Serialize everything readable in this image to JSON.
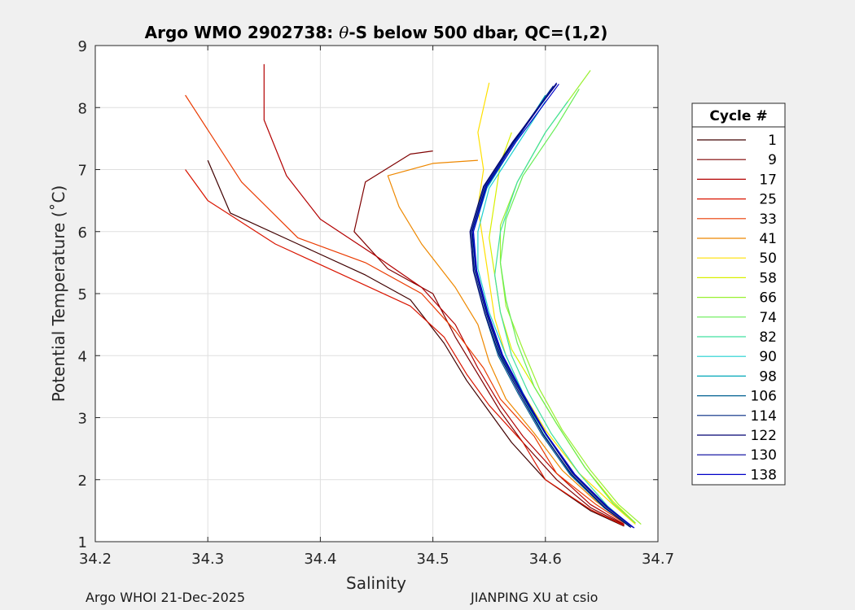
{
  "footer": {
    "left": "Argo WHOI 21-Dec-2025",
    "right": "JIANPING XU at csio"
  },
  "colors": {
    "background": "#f0f0f0",
    "axes_bg": "#ffffff",
    "grid": "#dfdfdf",
    "text": "#262626"
  },
  "chart_data": {
    "type": "line",
    "title_prefix": "Argo WMO 2902738: ",
    "title_theta": "θ",
    "title_suffix": "-S below 500 dbar,  QC=(1,2)",
    "xlabel": "Salinity",
    "ylabel": "Potential Temperature (˚C)",
    "xlim": [
      34.2,
      34.7
    ],
    "ylim": [
      1,
      9
    ],
    "xticks": [
      34.2,
      34.3,
      34.4,
      34.5,
      34.6,
      34.7
    ],
    "xtick_labels": [
      "34.2",
      "34.3",
      "34.4",
      "34.5",
      "34.6",
      "34.7"
    ],
    "yticks": [
      1,
      2,
      3,
      4,
      5,
      6,
      7,
      8,
      9
    ],
    "ytick_labels": [
      "1",
      "2",
      "3",
      "4",
      "5",
      "6",
      "7",
      "8",
      "9"
    ],
    "grid": true,
    "legend_title": "Cycle #",
    "legend_position": "outside-right",
    "series": [
      {
        "name": "1",
        "color": "#400000",
        "points": [
          [
            34.67,
            1.25
          ],
          [
            34.64,
            1.5
          ],
          [
            34.6,
            2.0
          ],
          [
            34.57,
            2.6
          ],
          [
            34.55,
            3.1
          ],
          [
            34.53,
            3.6
          ],
          [
            34.51,
            4.2
          ],
          [
            34.48,
            4.9
          ],
          [
            34.44,
            5.3
          ],
          [
            34.38,
            5.8
          ],
          [
            34.32,
            6.3
          ],
          [
            34.3,
            7.15
          ]
        ]
      },
      {
        "name": "9",
        "color": "#7f0000",
        "points": [
          [
            34.67,
            1.27
          ],
          [
            34.64,
            1.55
          ],
          [
            34.61,
            2.0
          ],
          [
            34.58,
            2.6
          ],
          [
            34.56,
            3.1
          ],
          [
            34.54,
            3.7
          ],
          [
            34.52,
            4.3
          ],
          [
            34.5,
            5.0
          ],
          [
            34.46,
            5.4
          ],
          [
            34.43,
            6.0
          ],
          [
            34.44,
            6.8
          ],
          [
            34.48,
            7.25
          ],
          [
            34.5,
            7.3
          ]
        ]
      },
      {
        "name": "17",
        "color": "#b30000",
        "points": [
          [
            34.67,
            1.28
          ],
          [
            34.64,
            1.6
          ],
          [
            34.61,
            2.1
          ],
          [
            34.58,
            2.7
          ],
          [
            34.56,
            3.2
          ],
          [
            34.54,
            3.8
          ],
          [
            34.52,
            4.5
          ],
          [
            34.49,
            5.1
          ],
          [
            34.45,
            5.6
          ],
          [
            34.4,
            6.2
          ],
          [
            34.37,
            6.9
          ],
          [
            34.35,
            7.8
          ],
          [
            34.35,
            8.7
          ]
        ]
      },
      {
        "name": "25",
        "color": "#d91500",
        "points": [
          [
            34.67,
            1.26
          ],
          [
            34.64,
            1.52
          ],
          [
            34.6,
            2.0
          ],
          [
            34.58,
            2.6
          ],
          [
            34.55,
            3.2
          ],
          [
            34.53,
            3.7
          ],
          [
            34.51,
            4.3
          ],
          [
            34.48,
            4.8
          ],
          [
            34.42,
            5.3
          ],
          [
            34.36,
            5.8
          ],
          [
            34.3,
            6.5
          ],
          [
            34.28,
            7.0
          ]
        ]
      },
      {
        "name": "33",
        "color": "#ea3a00",
        "points": [
          [
            34.67,
            1.3
          ],
          [
            34.645,
            1.6
          ],
          [
            34.61,
            2.1
          ],
          [
            34.59,
            2.7
          ],
          [
            34.56,
            3.3
          ],
          [
            34.545,
            3.8
          ],
          [
            34.52,
            4.4
          ],
          [
            34.49,
            5.0
          ],
          [
            34.44,
            5.5
          ],
          [
            34.38,
            5.9
          ],
          [
            34.33,
            6.8
          ],
          [
            34.28,
            8.2
          ]
        ]
      },
      {
        "name": "41",
        "color": "#ee8800",
        "points": [
          [
            34.67,
            1.32
          ],
          [
            34.645,
            1.65
          ],
          [
            34.615,
            2.15
          ],
          [
            34.59,
            2.75
          ],
          [
            34.565,
            3.3
          ],
          [
            34.55,
            3.9
          ],
          [
            34.54,
            4.5
          ],
          [
            34.52,
            5.1
          ],
          [
            34.49,
            5.8
          ],
          [
            34.47,
            6.4
          ],
          [
            34.46,
            6.9
          ],
          [
            34.5,
            7.1
          ],
          [
            34.54,
            7.15
          ]
        ]
      },
      {
        "name": "50",
        "color": "#ffe000",
        "points": [
          [
            34.68,
            1.28
          ],
          [
            34.66,
            1.6
          ],
          [
            34.63,
            2.1
          ],
          [
            34.6,
            2.8
          ],
          [
            34.58,
            3.4
          ],
          [
            34.565,
            4.0
          ],
          [
            34.555,
            4.6
          ],
          [
            34.55,
            5.2
          ],
          [
            34.545,
            5.8
          ],
          [
            34.54,
            6.4
          ],
          [
            34.545,
            7.0
          ],
          [
            34.54,
            7.6
          ],
          [
            34.55,
            8.4
          ]
        ]
      },
      {
        "name": "58",
        "color": "#d8f000",
        "points": [
          [
            34.68,
            1.3
          ],
          [
            34.66,
            1.65
          ],
          [
            34.635,
            2.2
          ],
          [
            34.61,
            2.9
          ],
          [
            34.59,
            3.5
          ],
          [
            34.57,
            4.1
          ],
          [
            34.56,
            4.7
          ],
          [
            34.555,
            5.3
          ],
          [
            34.55,
            5.9
          ],
          [
            34.555,
            6.5
          ],
          [
            34.56,
            7.1
          ],
          [
            34.57,
            7.6
          ]
        ]
      },
      {
        "name": "66",
        "color": "#99f030",
        "points": [
          [
            34.685,
            1.28
          ],
          [
            34.665,
            1.6
          ],
          [
            34.64,
            2.15
          ],
          [
            34.615,
            2.8
          ],
          [
            34.595,
            3.45
          ],
          [
            34.58,
            4.1
          ],
          [
            34.565,
            4.8
          ],
          [
            34.56,
            5.5
          ],
          [
            34.56,
            6.1
          ],
          [
            34.575,
            6.8
          ],
          [
            34.6,
            7.6
          ],
          [
            34.64,
            8.6
          ]
        ]
      },
      {
        "name": "74",
        "color": "#66ee55",
        "points": [
          [
            34.68,
            1.3
          ],
          [
            34.66,
            1.62
          ],
          [
            34.635,
            2.2
          ],
          [
            34.61,
            2.9
          ],
          [
            34.59,
            3.5
          ],
          [
            34.575,
            4.2
          ],
          [
            34.565,
            4.9
          ],
          [
            34.56,
            5.5
          ],
          [
            34.565,
            6.2
          ],
          [
            34.58,
            6.9
          ],
          [
            34.61,
            7.7
          ],
          [
            34.63,
            8.3
          ]
        ]
      },
      {
        "name": "82",
        "color": "#40e0a0",
        "points": [
          [
            34.675,
            1.27
          ],
          [
            34.655,
            1.58
          ],
          [
            34.63,
            2.1
          ],
          [
            34.605,
            2.75
          ],
          [
            34.585,
            3.4
          ],
          [
            34.57,
            4.0
          ],
          [
            34.56,
            4.7
          ],
          [
            34.555,
            5.3
          ],
          [
            34.56,
            6.0
          ],
          [
            34.575,
            6.8
          ],
          [
            34.6,
            7.6
          ],
          [
            34.62,
            8.1
          ]
        ]
      },
      {
        "name": "90",
        "color": "#20d0d0",
        "points": [
          [
            34.675,
            1.26
          ],
          [
            34.655,
            1.56
          ],
          [
            34.625,
            2.1
          ],
          [
            34.6,
            2.75
          ],
          [
            34.58,
            3.4
          ],
          [
            34.565,
            4.0
          ],
          [
            34.55,
            4.7
          ],
          [
            34.54,
            5.4
          ],
          [
            34.54,
            6.0
          ],
          [
            34.55,
            6.7
          ],
          [
            34.575,
            7.4
          ],
          [
            34.6,
            8.1
          ]
        ]
      },
      {
        "name": "98",
        "color": "#00a8b8",
        "points": [
          [
            34.675,
            1.25
          ],
          [
            34.652,
            1.55
          ],
          [
            34.622,
            2.1
          ],
          [
            34.598,
            2.75
          ],
          [
            34.578,
            3.4
          ],
          [
            34.56,
            4.0
          ],
          [
            34.548,
            4.7
          ],
          [
            34.538,
            5.4
          ],
          [
            34.536,
            6.0
          ],
          [
            34.548,
            6.7
          ],
          [
            34.572,
            7.4
          ],
          [
            34.6,
            8.2
          ]
        ]
      },
      {
        "name": "106",
        "color": "#006090",
        "points": [
          [
            34.675,
            1.24
          ],
          [
            34.652,
            1.55
          ],
          [
            34.622,
            2.08
          ],
          [
            34.597,
            2.72
          ],
          [
            34.576,
            3.38
          ],
          [
            34.558,
            4.0
          ],
          [
            34.546,
            4.68
          ],
          [
            34.536,
            5.36
          ],
          [
            34.535,
            6.0
          ],
          [
            34.547,
            6.72
          ],
          [
            34.572,
            7.44
          ],
          [
            34.605,
            8.3
          ]
        ]
      },
      {
        "name": "114",
        "color": "#002880",
        "points": [
          [
            34.677,
            1.24
          ],
          [
            34.654,
            1.56
          ],
          [
            34.624,
            2.1
          ],
          [
            34.6,
            2.74
          ],
          [
            34.578,
            3.4
          ],
          [
            34.56,
            4.02
          ],
          [
            34.547,
            4.7
          ],
          [
            34.537,
            5.38
          ],
          [
            34.534,
            6.0
          ],
          [
            34.546,
            6.74
          ],
          [
            34.572,
            7.46
          ],
          [
            34.607,
            8.35
          ]
        ]
      },
      {
        "name": "122",
        "color": "#000070",
        "points": [
          [
            34.676,
            1.23
          ],
          [
            34.653,
            1.55
          ],
          [
            34.623,
            2.09
          ],
          [
            34.598,
            2.73
          ],
          [
            34.577,
            3.39
          ],
          [
            34.559,
            4.01
          ],
          [
            34.546,
            4.69
          ],
          [
            34.536,
            5.37
          ],
          [
            34.533,
            6.0
          ],
          [
            34.545,
            6.73
          ],
          [
            34.571,
            7.45
          ],
          [
            34.61,
            8.38
          ]
        ]
      },
      {
        "name": "130",
        "color": "#00009a",
        "points": [
          [
            34.678,
            1.23
          ],
          [
            34.655,
            1.56
          ],
          [
            34.625,
            2.1
          ],
          [
            34.6,
            2.74
          ],
          [
            34.579,
            3.4
          ],
          [
            34.561,
            4.02
          ],
          [
            34.548,
            4.7
          ],
          [
            34.538,
            5.38
          ],
          [
            34.535,
            6.01
          ],
          [
            34.547,
            6.74
          ],
          [
            34.573,
            7.46
          ],
          [
            34.61,
            8.4
          ]
        ]
      },
      {
        "name": "138",
        "color": "#0000c8",
        "points": [
          [
            34.679,
            1.22
          ],
          [
            34.656,
            1.55
          ],
          [
            34.626,
            2.09
          ],
          [
            34.601,
            2.73
          ],
          [
            34.58,
            3.39
          ],
          [
            34.562,
            4.01
          ],
          [
            34.549,
            4.69
          ],
          [
            34.539,
            5.37
          ],
          [
            34.536,
            6.0
          ],
          [
            34.548,
            6.73
          ],
          [
            34.574,
            7.45
          ],
          [
            34.612,
            8.38
          ]
        ]
      }
    ]
  }
}
